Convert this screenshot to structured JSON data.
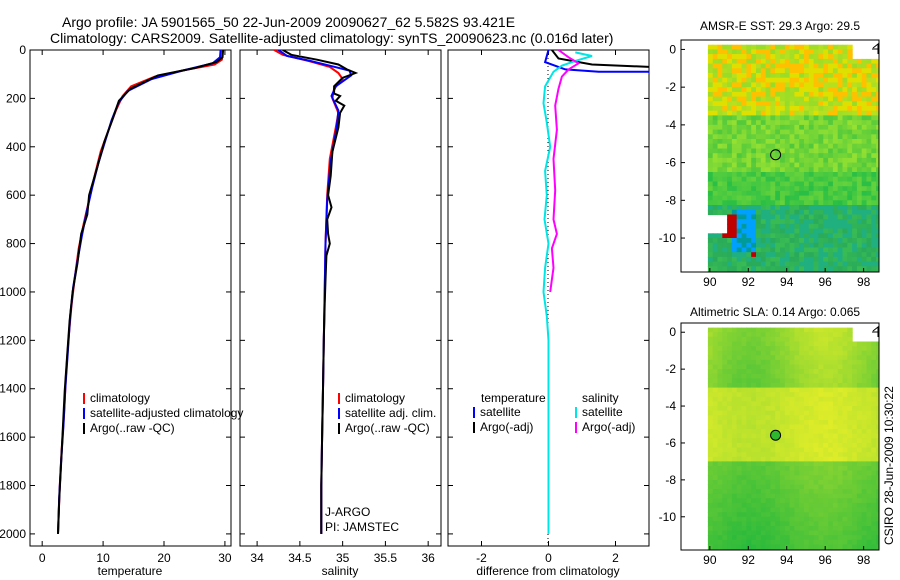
{
  "header": {
    "line1": "Argo profile: JA 5901565_50 22-Jun-2009 20090627_62 5.582S 93.421E",
    "line2": "Climatology: CARS2009. Satellite-adjusted climatology: synTS_20090623.nc (0.016d later)"
  },
  "side_label": "CSIRO 28-Jun-2009 10:30:22",
  "colors": {
    "climatology": "#ff0000",
    "satellite": "#0000ff",
    "argo": "#000000",
    "satellite_salinity": "#00e5e5",
    "argo_salinity_adj": "#ff00ff"
  },
  "chart_data": [
    {
      "type": "line",
      "xlabel": "temperature",
      "xlim": [
        -2,
        31
      ],
      "xticks": [
        0,
        10,
        20,
        30
      ],
      "ylim": [
        2050,
        0
      ],
      "yticks": [
        0,
        200,
        400,
        600,
        800,
        1000,
        1200,
        1400,
        1600,
        1800,
        2000
      ],
      "legend": [
        "climatology",
        "satellite-adjusted climatology",
        "Argo(..raw -QC)"
      ],
      "series": [
        {
          "name": "climatology",
          "color": "#ff0000",
          "points": [
            [
              29.6,
              0
            ],
            [
              29.5,
              40
            ],
            [
              28.3,
              60
            ],
            [
              24,
              80
            ],
            [
              18.5,
              110
            ],
            [
              14.6,
              150
            ],
            [
              13.2,
              190
            ],
            [
              12.1,
              250
            ],
            [
              10.9,
              330
            ],
            [
              9.6,
              420
            ],
            [
              8.6,
              520
            ],
            [
              7.7,
              620
            ],
            [
              6.8,
              720
            ],
            [
              6,
              820
            ],
            [
              5.3,
              950
            ],
            [
              4.8,
              1060
            ],
            [
              4.3,
              1200
            ],
            [
              3.9,
              1350
            ],
            [
              3.6,
              1500
            ],
            [
              3.2,
              1650
            ],
            [
              2.9,
              1800
            ],
            [
              2.6,
              2000
            ]
          ]
        },
        {
          "name": "satellite-adjusted climatology",
          "color": "#0000ff",
          "points": [
            [
              29.3,
              0
            ],
            [
              29.2,
              30
            ],
            [
              28,
              55
            ],
            [
              23,
              85
            ],
            [
              18,
              120
            ],
            [
              14,
              170
            ],
            [
              12.5,
              220
            ],
            [
              11.4,
              290
            ],
            [
              10.3,
              380
            ],
            [
              9.2,
              470
            ],
            [
              8.2,
              570
            ],
            [
              7.3,
              670
            ],
            [
              6.5,
              770
            ],
            [
              5.8,
              870
            ],
            [
              5.1,
              980
            ],
            [
              4.6,
              1100
            ],
            [
              4.2,
              1250
            ],
            [
              3.8,
              1400
            ],
            [
              3.5,
              1550
            ],
            [
              3.1,
              1700
            ],
            [
              2.8,
              1850
            ],
            [
              2.6,
              2000
            ]
          ]
        },
        {
          "name": "Argo(..raw -QC)",
          "color": "#000000",
          "points": [
            [
              29.7,
              0
            ],
            [
              29.6,
              30
            ],
            [
              28.6,
              50
            ],
            [
              25,
              75
            ],
            [
              19,
              105
            ],
            [
              14.5,
              160
            ],
            [
              12.6,
              210
            ],
            [
              11.5,
              290
            ],
            [
              10.2,
              380
            ],
            [
              9.1,
              480
            ],
            [
              7.7,
              600
            ],
            [
              7.4,
              680
            ],
            [
              6.4,
              760
            ],
            [
              5.8,
              880
            ],
            [
              5,
              1000
            ],
            [
              4.5,
              1120
            ],
            [
              4.1,
              1260
            ],
            [
              3.7,
              1410
            ],
            [
              3.4,
              1560
            ],
            [
              3.1,
              1710
            ],
            [
              2.8,
              1860
            ],
            [
              2.6,
              2000
            ]
          ]
        }
      ]
    },
    {
      "type": "line",
      "xlabel": "salinity",
      "xlim": [
        33.8,
        36.15
      ],
      "xticks": [
        34,
        34.5,
        35,
        35.5,
        36
      ],
      "ylim": [
        2050,
        0
      ],
      "legend": [
        "climatology",
        "satellite adj. clim.",
        "Argo(..raw -QC)"
      ],
      "annotations": [
        "J-ARGO",
        "PI: JAMSTEC"
      ],
      "series": [
        {
          "name": "climatology",
          "color": "#ff0000",
          "points": [
            [
              34.2,
              0
            ],
            [
              34.3,
              20
            ],
            [
              34.6,
              45
            ],
            [
              34.85,
              70
            ],
            [
              34.95,
              95
            ],
            [
              35,
              120
            ],
            [
              34.9,
              160
            ],
            [
              34.88,
              200
            ],
            [
              34.95,
              260
            ],
            [
              34.92,
              320
            ],
            [
              34.85,
              450
            ],
            [
              34.82,
              600
            ],
            [
              34.8,
              800
            ],
            [
              34.79,
              1000
            ],
            [
              34.78,
              1200
            ],
            [
              34.77,
              1400
            ],
            [
              34.76,
              1600
            ],
            [
              34.75,
              1800
            ],
            [
              34.75,
              2000
            ]
          ]
        },
        {
          "name": "satellite adj. clim.",
          "color": "#0000ff",
          "points": [
            [
              34.25,
              0
            ],
            [
              34.35,
              25
            ],
            [
              34.62,
              45
            ],
            [
              34.85,
              65
            ],
            [
              35.08,
              85
            ],
            [
              35.1,
              105
            ],
            [
              34.92,
              150
            ],
            [
              34.87,
              190
            ],
            [
              34.95,
              250
            ],
            [
              34.93,
              320
            ],
            [
              34.86,
              460
            ],
            [
              34.82,
              620
            ],
            [
              34.8,
              800
            ],
            [
              34.79,
              1000
            ],
            [
              34.78,
              1200
            ],
            [
              34.77,
              1400
            ],
            [
              34.76,
              1600
            ],
            [
              34.75,
              1800
            ],
            [
              34.75,
              2000
            ]
          ]
        },
        {
          "name": "Argo(..raw -QC)",
          "color": "#000000",
          "points": [
            [
              34.3,
              0
            ],
            [
              34.4,
              20
            ],
            [
              34.7,
              40
            ],
            [
              34.95,
              60
            ],
            [
              35.05,
              80
            ],
            [
              35.15,
              95
            ],
            [
              35,
              115
            ],
            [
              34.9,
              150
            ],
            [
              34.9,
              180
            ],
            [
              34.97,
              190
            ],
            [
              34.92,
              210
            ],
            [
              35.02,
              230
            ],
            [
              34.97,
              260
            ],
            [
              34.95,
              320
            ],
            [
              34.88,
              420
            ],
            [
              34.86,
              520
            ],
            [
              34.83,
              600
            ],
            [
              34.87,
              650
            ],
            [
              34.82,
              700
            ],
            [
              34.83,
              760
            ],
            [
              34.85,
              800
            ],
            [
              34.81,
              850
            ],
            [
              34.8,
              950
            ],
            [
              34.79,
              1050
            ],
            [
              34.78,
              1200
            ],
            [
              34.77,
              1400
            ],
            [
              34.76,
              1600
            ],
            [
              34.75,
              1800
            ],
            [
              34.75,
              2000
            ]
          ]
        }
      ]
    },
    {
      "type": "line",
      "xlabel": "difference from climatology",
      "xlim": [
        -3,
        3
      ],
      "xticks": [
        -2,
        0,
        2
      ],
      "ylim": [
        2050,
        0
      ],
      "legend_titles": [
        "temperature",
        "salinity"
      ],
      "legend": [
        "satellite",
        "Argo(-adj)",
        "satellite",
        "Argo(-adj)"
      ],
      "series": [
        {
          "name": "temperature satellite",
          "color": "#0000ff",
          "points": [
            [
              0,
              0
            ],
            [
              -0.1,
              50
            ],
            [
              0.5,
              80
            ],
            [
              1.5,
              90
            ],
            [
              3,
              90
            ]
          ]
        },
        {
          "name": "temperature Argo(-adj)",
          "color": "#000000",
          "points": [
            [
              0.1,
              0
            ],
            [
              0.3,
              35
            ],
            [
              1.3,
              60
            ],
            [
              3,
              70
            ]
          ]
        },
        {
          "name": "salinity satellite",
          "color": "#00e5e5",
          "points": [
            [
              0.8,
              10
            ],
            [
              1.3,
              25
            ],
            [
              0.8,
              45
            ],
            [
              0.4,
              65
            ],
            [
              0.15,
              90
            ],
            [
              -0.1,
              150
            ],
            [
              -0.15,
              220
            ],
            [
              -0.05,
              300
            ],
            [
              0.05,
              400
            ],
            [
              -0.1,
              500
            ],
            [
              -0.05,
              600
            ],
            [
              -0.12,
              700
            ],
            [
              0,
              800
            ],
            [
              -0.1,
              900
            ],
            [
              -0.15,
              1000
            ],
            [
              -0.05,
              1100
            ],
            [
              0,
              1200
            ],
            [
              0,
              1400
            ],
            [
              0,
              1600
            ],
            [
              0,
              1800
            ],
            [
              0,
              2000
            ]
          ]
        },
        {
          "name": "salinity Argo(-adj)",
          "color": "#ff00ff",
          "points": [
            [
              0.3,
              0
            ],
            [
              0.6,
              30
            ],
            [
              0.9,
              55
            ],
            [
              0.6,
              80
            ],
            [
              0.4,
              110
            ],
            [
              0.3,
              160
            ],
            [
              0.2,
              230
            ],
            [
              0.25,
              330
            ],
            [
              0.15,
              450
            ],
            [
              0.2,
              580
            ],
            [
              0.15,
              700
            ],
            [
              0.25,
              760
            ],
            [
              0.1,
              820
            ],
            [
              0.15,
              900
            ],
            [
              0.05,
              1000
            ]
          ]
        }
      ]
    },
    {
      "type": "heatmap",
      "title": "AMSR-E SST: 29.3 Argo: 29.5",
      "xticks": [
        90,
        92,
        94,
        96,
        98
      ],
      "yticks": [
        0,
        -2,
        -4,
        -6,
        -8,
        -10
      ],
      "xlim": [
        88.5,
        98.8
      ],
      "ylim": [
        -11.8,
        0.5
      ],
      "argo_position": [
        93.421,
        -5.582
      ]
    },
    {
      "type": "heatmap",
      "title": "Altimetric SLA: 0.14 Argo: 0.065",
      "xticks": [
        90,
        92,
        94,
        96,
        98
      ],
      "yticks": [
        0,
        -2,
        -4,
        -6,
        -8,
        -10
      ],
      "xlim": [
        88.5,
        98.8
      ],
      "ylim": [
        -11.8,
        0.5
      ],
      "argo_position": [
        93.421,
        -5.582
      ]
    }
  ]
}
